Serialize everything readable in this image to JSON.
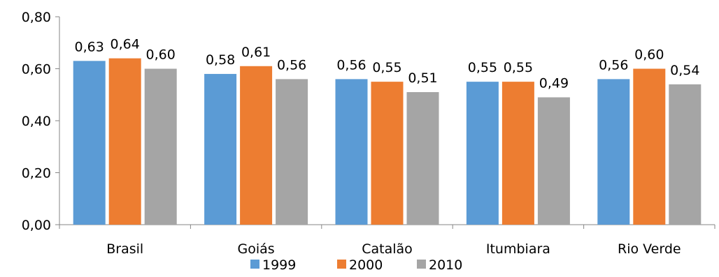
{
  "chart_data": {
    "type": "bar",
    "categories": [
      "Brasil",
      "Goiás",
      "Catalão",
      "Itumbiara",
      "Rio Verde"
    ],
    "series": [
      {
        "name": "1999",
        "color": "#5B9BD5",
        "values": [
          0.63,
          0.58,
          0.56,
          0.55,
          0.56
        ]
      },
      {
        "name": "2000",
        "color": "#ED7D31",
        "values": [
          0.64,
          0.61,
          0.55,
          0.55,
          0.6
        ]
      },
      {
        "name": "2010",
        "color": "#A5A5A5",
        "values": [
          0.6,
          0.56,
          0.51,
          0.49,
          0.54
        ]
      }
    ],
    "data_labels": [
      [
        "0,63",
        "0,58",
        "0,56",
        "0,55",
        "0,56"
      ],
      [
        "0,64",
        "0,61",
        "0,55",
        "0,55",
        "0,60"
      ],
      [
        "0,60",
        "0,56",
        "0,51",
        "0,49",
        "0,54"
      ]
    ],
    "y_ticks": [
      0,
      0.2,
      0.4,
      0.6,
      0.8
    ],
    "y_tick_labels": [
      "0,00",
      "0,20",
      "0,40",
      "0,60",
      "0,80"
    ],
    "ylim": [
      0,
      0.8
    ],
    "grid": false,
    "legend_position": "bottom"
  }
}
